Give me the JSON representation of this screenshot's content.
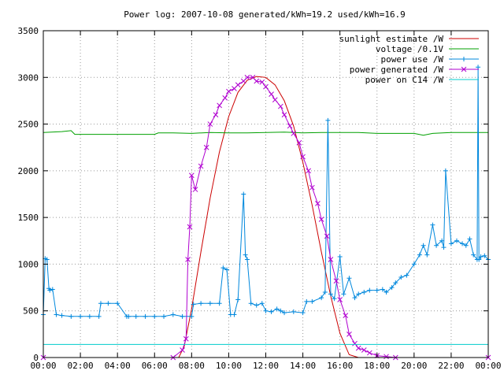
{
  "chart_data": {
    "type": "line",
    "title": "Power log: 2007-10-08 generated/kWh=19.2 used/kWh=16.9",
    "xlabel": "",
    "ylabel": "",
    "xlim": [
      0,
      24
    ],
    "ylim": [
      0,
      3500
    ],
    "x_ticks": [
      0,
      2,
      4,
      6,
      8,
      10,
      12,
      14,
      16,
      18,
      20,
      22,
      24
    ],
    "x_tick_labels": [
      "00:00",
      "02:00",
      "04:00",
      "06:00",
      "08:00",
      "10:00",
      "12:00",
      "14:00",
      "16:00",
      "18:00",
      "20:00",
      "22:00",
      "00:00"
    ],
    "y_ticks": [
      0,
      500,
      1000,
      1500,
      2000,
      2500,
      3000,
      3500
    ],
    "y_tick_labels": [
      "0",
      "500",
      "1000",
      "1500",
      "2000",
      "2500",
      "3000",
      "3500"
    ],
    "grid": true,
    "legend_position": "top-right",
    "series": [
      {
        "name": "sunlight estimate /W",
        "color": "#cc0000",
        "marker": "none",
        "x": [
          7.3,
          7.6,
          8.0,
          8.5,
          9.0,
          9.5,
          10.0,
          10.5,
          11.0,
          11.5,
          12.0,
          12.5,
          13.0,
          13.5,
          14.0,
          14.5,
          15.0,
          15.5,
          16.0,
          16.5,
          17.0
        ],
        "y": [
          0,
          120,
          520,
          1130,
          1710,
          2200,
          2580,
          2840,
          2970,
          3010,
          3000,
          2920,
          2750,
          2480,
          2090,
          1630,
          1130,
          660,
          260,
          30,
          0
        ]
      },
      {
        "name": "voltage /0.1V",
        "color": "#00a000",
        "marker": "none",
        "x": [
          0,
          1.0,
          1.5,
          1.7,
          2.0,
          3.0,
          4.0,
          5.0,
          6.0,
          6.2,
          6.4,
          7.0,
          8.0,
          9.0,
          10.0,
          11.0,
          12.0,
          13.0,
          14.0,
          15.0,
          16.0,
          17.0,
          18.0,
          19.0,
          20.0,
          20.5,
          21.0,
          22.0,
          23.0,
          24.0
        ],
        "y": [
          2410,
          2420,
          2430,
          2390,
          2390,
          2390,
          2390,
          2390,
          2390,
          2405,
          2405,
          2405,
          2400,
          2410,
          2405,
          2405,
          2410,
          2415,
          2405,
          2410,
          2410,
          2410,
          2400,
          2400,
          2400,
          2380,
          2400,
          2410,
          2410,
          2410
        ]
      },
      {
        "name": "power use /W",
        "color": "#0088dd",
        "marker": "+",
        "x": [
          0,
          0.1,
          0.2,
          0.3,
          0.35,
          0.5,
          0.7,
          1.0,
          1.5,
          2.0,
          2.5,
          3.0,
          3.1,
          3.5,
          4.0,
          4.5,
          4.6,
          5.0,
          5.5,
          6.0,
          6.5,
          7.0,
          7.5,
          8.0,
          8.1,
          8.5,
          9.0,
          9.5,
          9.7,
          9.9,
          10.1,
          10.3,
          10.5,
          10.8,
          10.9,
          11.0,
          11.2,
          11.5,
          11.8,
          12.0,
          12.3,
          12.6,
          12.8,
          13.0,
          13.5,
          14.0,
          14.2,
          14.5,
          15.0,
          15.2,
          15.35,
          15.5,
          15.7,
          16.0,
          16.2,
          16.5,
          16.8,
          17.0,
          17.3,
          17.6,
          18.0,
          18.3,
          18.5,
          18.8,
          19.0,
          19.3,
          19.6,
          20.0,
          20.3,
          20.5,
          20.7,
          21.0,
          21.2,
          21.5,
          21.6,
          21.7,
          22.0,
          22.3,
          22.6,
          22.8,
          23.0,
          23.2,
          23.4,
          23.45,
          23.5,
          23.6,
          23.8,
          24.0
        ],
        "y": [
          460,
          1060,
          1050,
          740,
          720,
          730,
          460,
          450,
          440,
          440,
          440,
          440,
          580,
          580,
          580,
          440,
          440,
          440,
          440,
          440,
          440,
          460,
          440,
          440,
          570,
          580,
          580,
          580,
          960,
          940,
          460,
          460,
          620,
          1750,
          1100,
          1050,
          580,
          560,
          580,
          500,
          490,
          520,
          500,
          480,
          490,
          480,
          600,
          600,
          640,
          700,
          2540,
          680,
          630,
          1080,
          680,
          850,
          640,
          680,
          700,
          720,
          720,
          730,
          700,
          750,
          800,
          860,
          880,
          1000,
          1100,
          1200,
          1100,
          1420,
          1200,
          1250,
          1180,
          2000,
          1220,
          1250,
          1220,
          1200,
          1270,
          1100,
          1050,
          3110,
          1050,
          1080,
          1090,
          1050
        ]
      },
      {
        "name": "power generated /W",
        "color": "#b000d0",
        "marker": "x",
        "x": [
          0,
          7.0,
          7.5,
          7.7,
          7.8,
          7.9,
          8.0,
          8.2,
          8.5,
          8.8,
          9.0,
          9.3,
          9.5,
          9.8,
          10.0,
          10.3,
          10.5,
          10.8,
          11.0,
          11.3,
          11.5,
          11.8,
          12.0,
          12.3,
          12.5,
          12.8,
          13.0,
          13.3,
          13.5,
          13.8,
          14.0,
          14.3,
          14.5,
          14.8,
          15.0,
          15.3,
          15.5,
          15.8,
          16.0,
          16.3,
          16.5,
          16.8,
          17.0,
          17.3,
          17.6,
          18.0,
          18.5,
          19.0,
          24.0
        ],
        "y": [
          0,
          0,
          80,
          200,
          1050,
          1400,
          1950,
          1800,
          2050,
          2250,
          2500,
          2600,
          2700,
          2780,
          2850,
          2880,
          2920,
          2960,
          3000,
          3000,
          2960,
          2950,
          2900,
          2820,
          2760,
          2690,
          2600,
          2480,
          2400,
          2300,
          2150,
          2000,
          1820,
          1650,
          1480,
          1300,
          1050,
          820,
          620,
          450,
          250,
          150,
          100,
          80,
          50,
          20,
          10,
          0,
          0
        ]
      },
      {
        "name": "power on C14 /W",
        "color": "#00cccc",
        "marker": "none",
        "x": [
          0,
          24
        ],
        "y": [
          140,
          140
        ]
      }
    ]
  }
}
